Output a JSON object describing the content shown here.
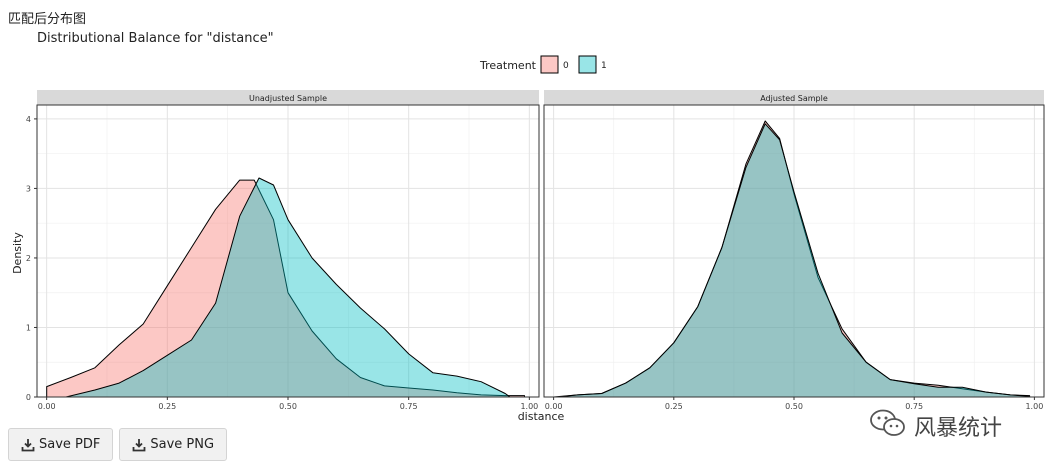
{
  "page": {
    "header": "匹配后分布图"
  },
  "buttons": {
    "save_pdf": "Save PDF",
    "save_png": "Save PNG"
  },
  "watermark": {
    "text": "风暴统计"
  },
  "icons": {
    "save_pdf": "download-icon",
    "save_png": "download-icon",
    "watermark": "wechat-icon"
  },
  "chart_data": {
    "type": "area",
    "title": "Distributional Balance for \"distance\"",
    "xlabel": "distance",
    "ylabel": "Density",
    "legend": {
      "title": "Treatment",
      "position": "top",
      "entries": [
        {
          "label": "0",
          "color": "#F8766D"
        },
        {
          "label": "1",
          "color": "#00BFC4"
        }
      ]
    },
    "grid": true,
    "facets": [
      {
        "label": "Unadjusted Sample",
        "xlim": [
          -0.02,
          1.02
        ],
        "ylim": [
          0,
          4.2
        ],
        "xticks": [
          0.0,
          0.25,
          0.5,
          0.75,
          1.0
        ],
        "xtick_labels": [
          "0.00",
          "0.25",
          "0.50",
          "0.75",
          "1.00"
        ],
        "yticks": [
          0,
          1,
          2,
          3,
          4
        ],
        "ytick_labels": [
          "0",
          "1",
          "2",
          "3",
          "4"
        ],
        "series": [
          {
            "name": "0",
            "x": [
              0.0,
              0.05,
              0.1,
              0.15,
              0.2,
              0.25,
              0.3,
              0.35,
              0.4,
              0.43,
              0.47,
              0.5,
              0.55,
              0.6,
              0.65,
              0.7,
              0.75,
              0.8,
              0.85,
              0.9,
              0.95,
              0.99
            ],
            "y": [
              0.15,
              0.28,
              0.42,
              0.75,
              1.05,
              1.6,
              2.15,
              2.7,
              3.12,
              3.12,
              2.55,
              1.5,
              0.95,
              0.55,
              0.28,
              0.16,
              0.13,
              0.1,
              0.06,
              0.03,
              0.02,
              0.02
            ]
          },
          {
            "name": "1",
            "x": [
              0.04,
              0.1,
              0.15,
              0.2,
              0.25,
              0.3,
              0.35,
              0.4,
              0.44,
              0.47,
              0.5,
              0.55,
              0.6,
              0.65,
              0.7,
              0.75,
              0.8,
              0.85,
              0.9,
              0.95,
              0.96
            ],
            "y": [
              0.0,
              0.1,
              0.2,
              0.38,
              0.6,
              0.82,
              1.35,
              2.6,
              3.15,
              3.05,
              2.55,
              2.0,
              1.62,
              1.28,
              0.98,
              0.62,
              0.35,
              0.3,
              0.22,
              0.05,
              0.0
            ]
          }
        ]
      },
      {
        "label": "Adjusted Sample",
        "xlim": [
          -0.02,
          1.02
        ],
        "ylim": [
          0,
          4.2
        ],
        "xticks": [
          0.0,
          0.25,
          0.5,
          0.75,
          1.0
        ],
        "xtick_labels": [
          "0.00",
          "0.25",
          "0.50",
          "0.75",
          "1.00"
        ],
        "yticks": [
          0,
          1,
          2,
          3,
          4
        ],
        "ytick_labels": [
          "0",
          "1",
          "2",
          "3",
          "4"
        ],
        "series": [
          {
            "name": "0",
            "x": [
              0.0,
              0.05,
              0.1,
              0.15,
              0.2,
              0.25,
              0.3,
              0.35,
              0.4,
              0.44,
              0.47,
              0.5,
              0.55,
              0.6,
              0.65,
              0.7,
              0.75,
              0.8,
              0.85,
              0.9,
              0.95,
              0.99
            ],
            "y": [
              0.0,
              0.03,
              0.05,
              0.2,
              0.42,
              0.78,
              1.3,
              2.15,
              3.35,
              3.97,
              3.72,
              2.92,
              1.72,
              0.98,
              0.5,
              0.25,
              0.2,
              0.17,
              0.12,
              0.07,
              0.03,
              0.02
            ]
          },
          {
            "name": "1",
            "x": [
              0.01,
              0.05,
              0.1,
              0.15,
              0.2,
              0.25,
              0.3,
              0.35,
              0.4,
              0.44,
              0.47,
              0.5,
              0.55,
              0.6,
              0.65,
              0.7,
              0.75,
              0.8,
              0.85,
              0.9,
              0.95,
              0.99
            ],
            "y": [
              0.0,
              0.03,
              0.05,
              0.2,
              0.42,
              0.78,
              1.3,
              2.15,
              3.3,
              3.93,
              3.7,
              2.95,
              1.78,
              0.92,
              0.5,
              0.25,
              0.19,
              0.14,
              0.14,
              0.07,
              0.03,
              0.01
            ]
          }
        ]
      }
    ]
  }
}
